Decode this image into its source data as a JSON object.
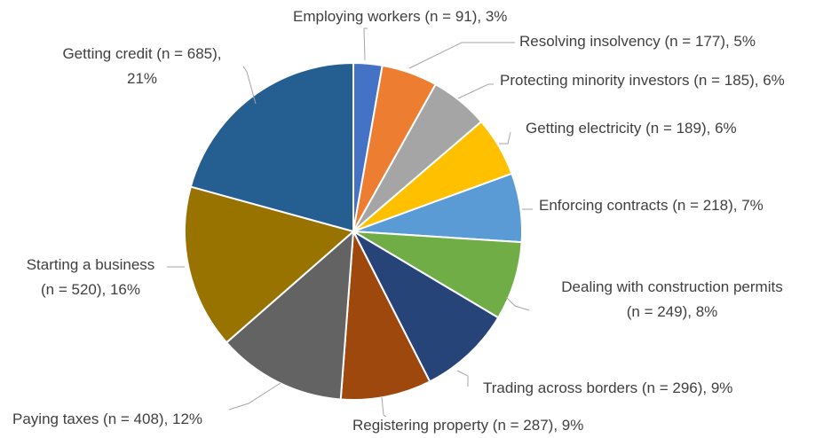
{
  "chart_data": {
    "type": "pie",
    "title": "",
    "start": "top",
    "direction": "clockwise",
    "slices": [
      {
        "label": "Employing workers",
        "n": 91,
        "percent": 3,
        "color": "#4472c4",
        "text_lines": [
          "Employing workers (n = 91), 3%"
        ]
      },
      {
        "label": "Resolving insolvency",
        "n": 177,
        "percent": 5,
        "color": "#ed7d31",
        "text_lines": [
          "Resolving insolvency (n = 177), 5%"
        ]
      },
      {
        "label": "Protecting minority investors",
        "n": 185,
        "percent": 6,
        "color": "#a5a5a5",
        "text_lines": [
          "Protecting minority investors (n = 185), 6%"
        ]
      },
      {
        "label": "Getting electricity",
        "n": 189,
        "percent": 6,
        "color": "#ffc000",
        "text_lines": [
          "Getting electricity (n = 189), 6%"
        ]
      },
      {
        "label": "Enforcing contracts",
        "n": 218,
        "percent": 7,
        "color": "#5b9bd5",
        "text_lines": [
          "Enforcing contracts (n = 218), 7%"
        ]
      },
      {
        "label": "Dealing with construction permits",
        "n": 249,
        "percent": 8,
        "color": "#70ad47",
        "text_lines": [
          "Dealing with construction permits",
          "(n = 249), 8%"
        ]
      },
      {
        "label": "Trading across borders",
        "n": 296,
        "percent": 9,
        "color": "#264478",
        "text_lines": [
          "Trading across borders (n = 296), 9%"
        ]
      },
      {
        "label": "Registering property",
        "n": 287,
        "percent": 9,
        "color": "#9e480e",
        "text_lines": [
          "Registering property (n = 287), 9%"
        ]
      },
      {
        "label": "Paying taxes",
        "n": 408,
        "percent": 12,
        "color": "#636363",
        "text_lines": [
          "Paying taxes (n = 408), 12%"
        ]
      },
      {
        "label": "Starting a business",
        "n": 520,
        "percent": 16,
        "color": "#997300",
        "text_lines": [
          "Starting a business",
          "(n = 520), 16%"
        ]
      },
      {
        "label": "Getting credit",
        "n": 685,
        "percent": 21,
        "color": "#255e91",
        "text_lines": [
          "Getting credit (n = 685),",
          "21%"
        ]
      }
    ]
  }
}
